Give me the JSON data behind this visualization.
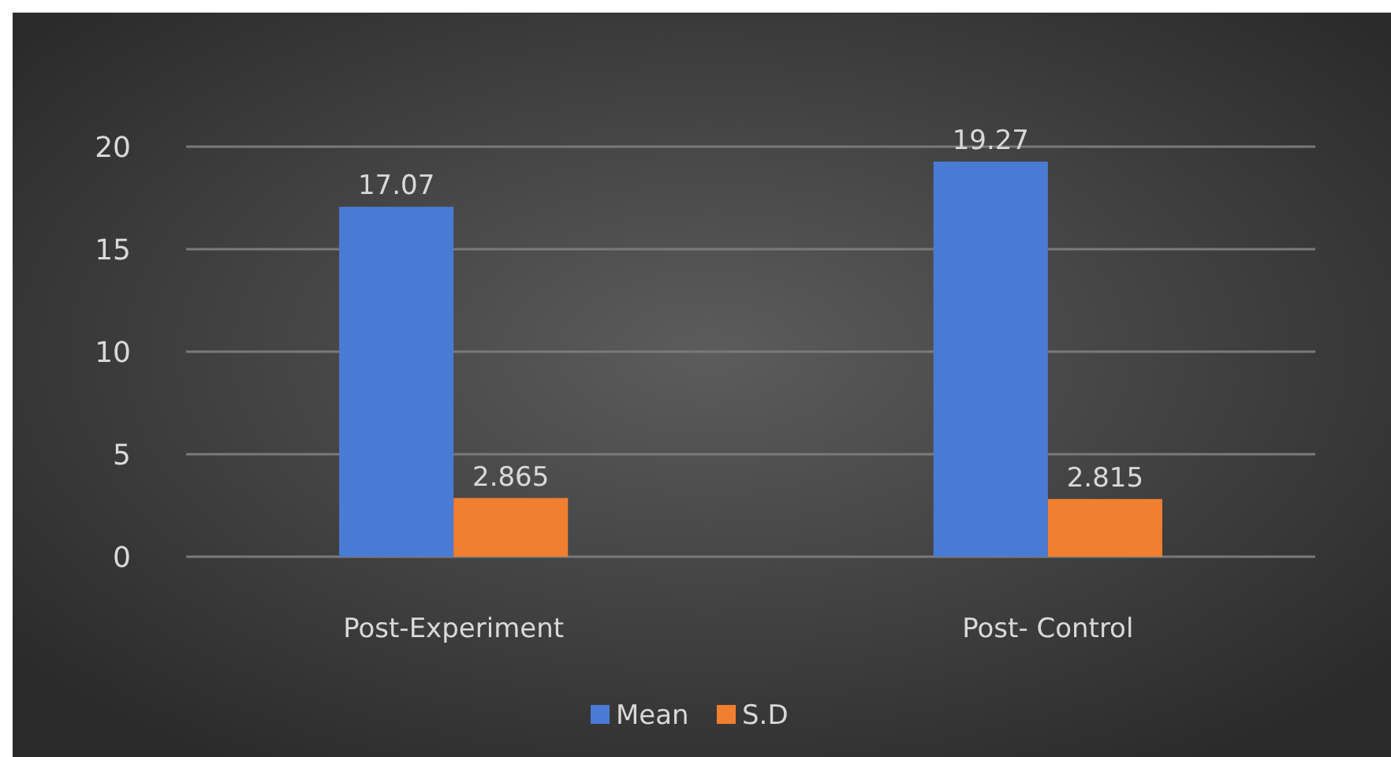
{
  "chart_data": {
    "type": "bar",
    "categories": [
      "Post-Experiment",
      "Post- Control"
    ],
    "series": [
      {
        "name": "Mean",
        "color": "#4a7bd4",
        "values": [
          17.07,
          19.27
        ]
      },
      {
        "name": "S.D",
        "color": "#f07f2f",
        "values": [
          2.865,
          2.815
        ]
      }
    ],
    "ylim": [
      0,
      20
    ],
    "yticks": [
      0,
      5,
      10,
      15,
      20
    ],
    "grid": "y",
    "legend": "bottom",
    "data_labels": true
  }
}
